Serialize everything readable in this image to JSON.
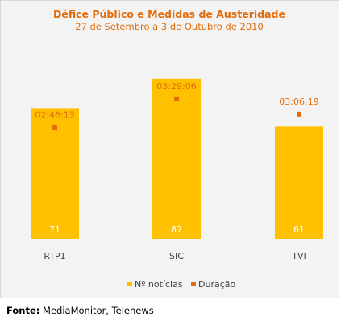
{
  "chart_data": {
    "type": "bar",
    "title": "Défice Público e Medidas de Austeridade",
    "subtitle": "27 de Setembro a 3 de Outubro de 2010",
    "categories": [
      "RTP1",
      "SIC",
      "TVI"
    ],
    "series": [
      {
        "name": "Nº notícias",
        "type": "bar",
        "values": [
          71,
          87,
          61
        ],
        "value_labels": [
          "71",
          "87",
          "61"
        ],
        "color": "#ffc000"
      },
      {
        "name": "Duração",
        "type": "marker",
        "values": [
          "02:46:13",
          "03:29:06",
          "03:06:19"
        ],
        "color": "#e36c0a"
      }
    ],
    "ylim": [
      0,
      100
    ],
    "duration_axis_seconds": [
      0,
      16500
    ],
    "legend_position": "bottom",
    "grid": false
  },
  "colors": {
    "accent": "#e36c0a",
    "bar": "#ffc000",
    "category_text": "#404040",
    "frame_background": "#f3f3f3"
  },
  "source": {
    "label": "Fonte:",
    "text": " MediaMonitor, Telenews"
  }
}
